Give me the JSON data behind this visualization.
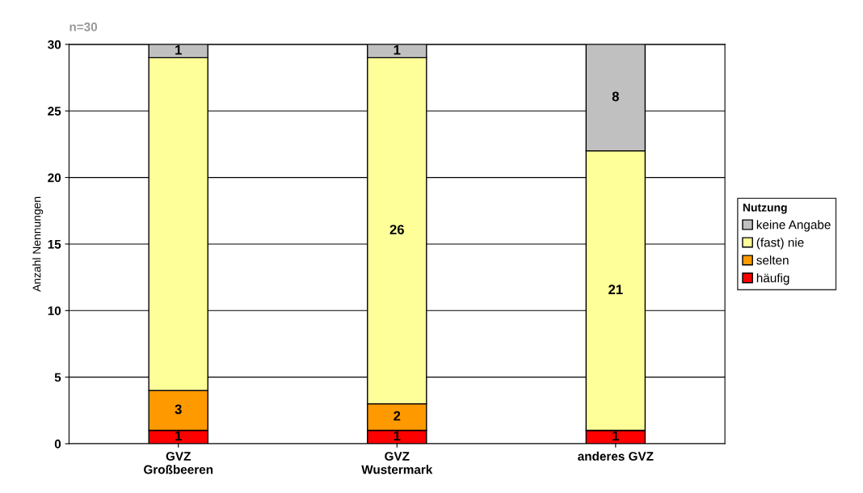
{
  "chart_data": {
    "type": "bar",
    "stacked": true,
    "subtitle": "n=30",
    "ylabel": "Anzahl Nennungen",
    "categories": [
      "GVZ\nGroßbeeren",
      "GVZ\nWustermark",
      "anderes GVZ"
    ],
    "series": [
      {
        "name": "häufig",
        "color": "#ff0000",
        "values": [
          1,
          1,
          1
        ],
        "value_labels": [
          "1",
          "1",
          "1"
        ]
      },
      {
        "name": "selten",
        "color": "#ff9900",
        "values": [
          3,
          2,
          null
        ],
        "value_labels": [
          "3",
          "2",
          null
        ]
      },
      {
        "name": "(fast) nie",
        "color": "#ffff99",
        "values": [
          25,
          26,
          21
        ],
        "value_labels": [
          null,
          "26",
          "21"
        ]
      },
      {
        "name": "keine Angabe",
        "color": "#c0c0c0",
        "values": [
          1,
          1,
          8
        ],
        "value_labels": [
          "1",
          "1",
          "8"
        ]
      }
    ],
    "ylim": [
      0,
      30
    ],
    "yticks": [
      0,
      5,
      10,
      15,
      20,
      25,
      30
    ],
    "grid": "y",
    "legend": "right",
    "legend_title": "Nutzung"
  }
}
